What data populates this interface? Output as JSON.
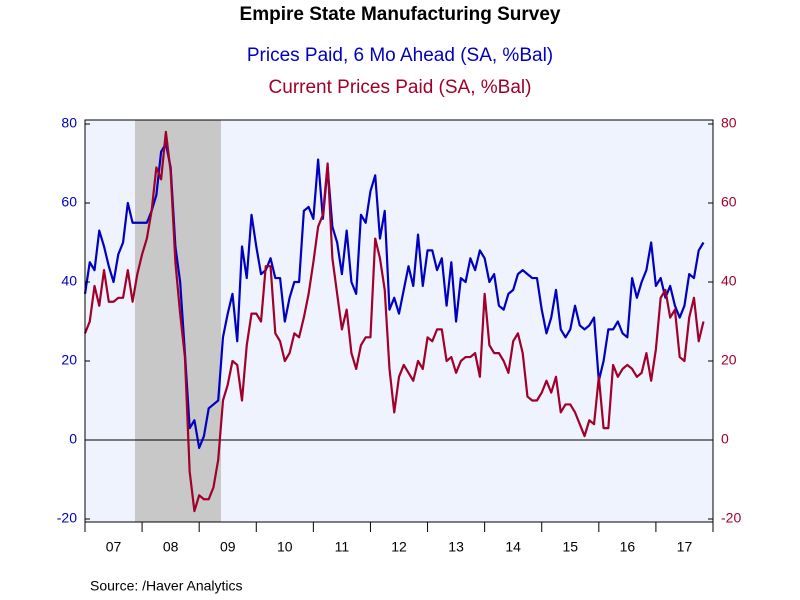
{
  "chart_data": {
    "type": "line",
    "title": "Empire State Manufacturing Survey",
    "source": "Source:  /Haver Analytics",
    "categories": [
      null,
      null,
      null,
      null,
      null,
      null,
      "07",
      null,
      null,
      null,
      null,
      null,
      null,
      null,
      null,
      null,
      null,
      null,
      "08",
      null,
      null,
      null,
      null,
      null,
      null,
      null,
      null,
      null,
      null,
      null,
      "09",
      null,
      null,
      null,
      null,
      null,
      null,
      null,
      null,
      null,
      null,
      null,
      "10",
      null,
      null,
      null,
      null,
      null,
      null,
      null,
      null,
      null,
      null,
      null,
      "11",
      null,
      null,
      null,
      null,
      null,
      null,
      null,
      null,
      null,
      null,
      null,
      "12",
      null,
      null,
      null,
      null,
      null,
      null,
      null,
      null,
      null,
      null,
      null,
      "13",
      null,
      null,
      null,
      null,
      null,
      null,
      null,
      null,
      null,
      null,
      null,
      "14",
      null,
      null,
      null,
      null,
      null,
      null,
      null,
      null,
      null,
      null,
      null,
      "15",
      null,
      null,
      null,
      null,
      null,
      null,
      null,
      null,
      null,
      null,
      null,
      "16",
      null,
      null,
      null,
      null,
      null,
      null,
      null,
      null,
      null,
      null,
      null,
      "17",
      null,
      null,
      null,
      null
    ],
    "series": [
      {
        "name": "Prices Paid, 6 Mo Ahead (SA, %Bal)",
        "color": "#0000c0",
        "axis": "y",
        "values": [
          37,
          45,
          43,
          53,
          49,
          44,
          40,
          47,
          50,
          60,
          55,
          55,
          55,
          55,
          58,
          62,
          73,
          75,
          69,
          49,
          40,
          22,
          3,
          5,
          -2,
          1,
          8,
          9,
          10,
          26,
          32,
          37,
          25,
          49,
          41,
          57,
          49,
          42,
          43,
          46,
          41,
          41,
          30,
          36,
          40,
          40,
          58,
          59,
          56,
          71,
          56,
          69,
          54,
          50,
          42,
          53,
          40,
          37,
          57,
          55,
          63,
          67,
          51,
          58,
          33,
          36,
          32,
          38,
          44,
          39,
          52,
          39,
          48,
          48,
          43,
          46,
          34,
          45,
          30,
          41,
          40,
          46,
          43,
          48,
          46,
          40,
          42,
          34,
          33,
          37,
          38,
          42,
          43,
          42,
          41,
          41,
          33,
          27,
          31,
          38,
          28,
          26,
          28,
          34,
          29,
          28,
          29,
          31,
          15,
          20,
          28,
          28,
          30,
          27,
          26,
          41,
          36,
          40,
          43,
          50,
          39,
          41,
          36,
          39,
          34,
          31,
          34,
          42,
          41,
          48,
          50
        ]
      },
      {
        "name": "Current Prices Paid (SA, %Bal)",
        "color": "#a0002a",
        "axis": "y2",
        "values": [
          27,
          30,
          39,
          34,
          43,
          35,
          35,
          36,
          36,
          43,
          35,
          42,
          47,
          51,
          58,
          69,
          66,
          78,
          68,
          45,
          32,
          21,
          -8,
          -18,
          -14,
          -15,
          -15,
          -12,
          -5,
          10,
          14,
          20,
          19,
          10,
          24,
          32,
          32,
          30,
          44,
          44,
          27,
          25,
          20,
          22,
          27,
          26,
          31,
          37,
          45,
          54,
          57,
          70,
          46,
          37,
          28,
          33,
          22,
          18,
          24,
          26,
          26,
          51,
          46,
          38,
          18,
          7,
          16,
          19,
          17,
          15,
          20,
          18,
          26,
          25,
          28,
          28,
          20,
          21,
          17,
          20,
          21,
          21,
          22,
          16,
          37,
          24,
          22,
          22,
          20,
          17,
          25,
          27,
          22,
          11,
          10,
          10,
          12,
          15,
          12,
          16,
          7,
          9,
          9,
          7,
          4,
          1,
          5,
          4,
          16,
          3,
          3,
          19,
          16,
          18,
          19,
          18,
          16,
          17,
          22,
          15,
          23,
          36,
          38,
          31,
          33,
          21,
          20,
          31,
          36,
          25,
          30
        ]
      }
    ],
    "ylim": [
      -20,
      80
    ],
    "yticks": [
      -20,
      0,
      20,
      40,
      60,
      80
    ],
    "y2lim": [
      -20,
      80
    ],
    "y2ticks": [
      -20,
      0,
      20,
      40,
      60,
      80
    ]
  }
}
